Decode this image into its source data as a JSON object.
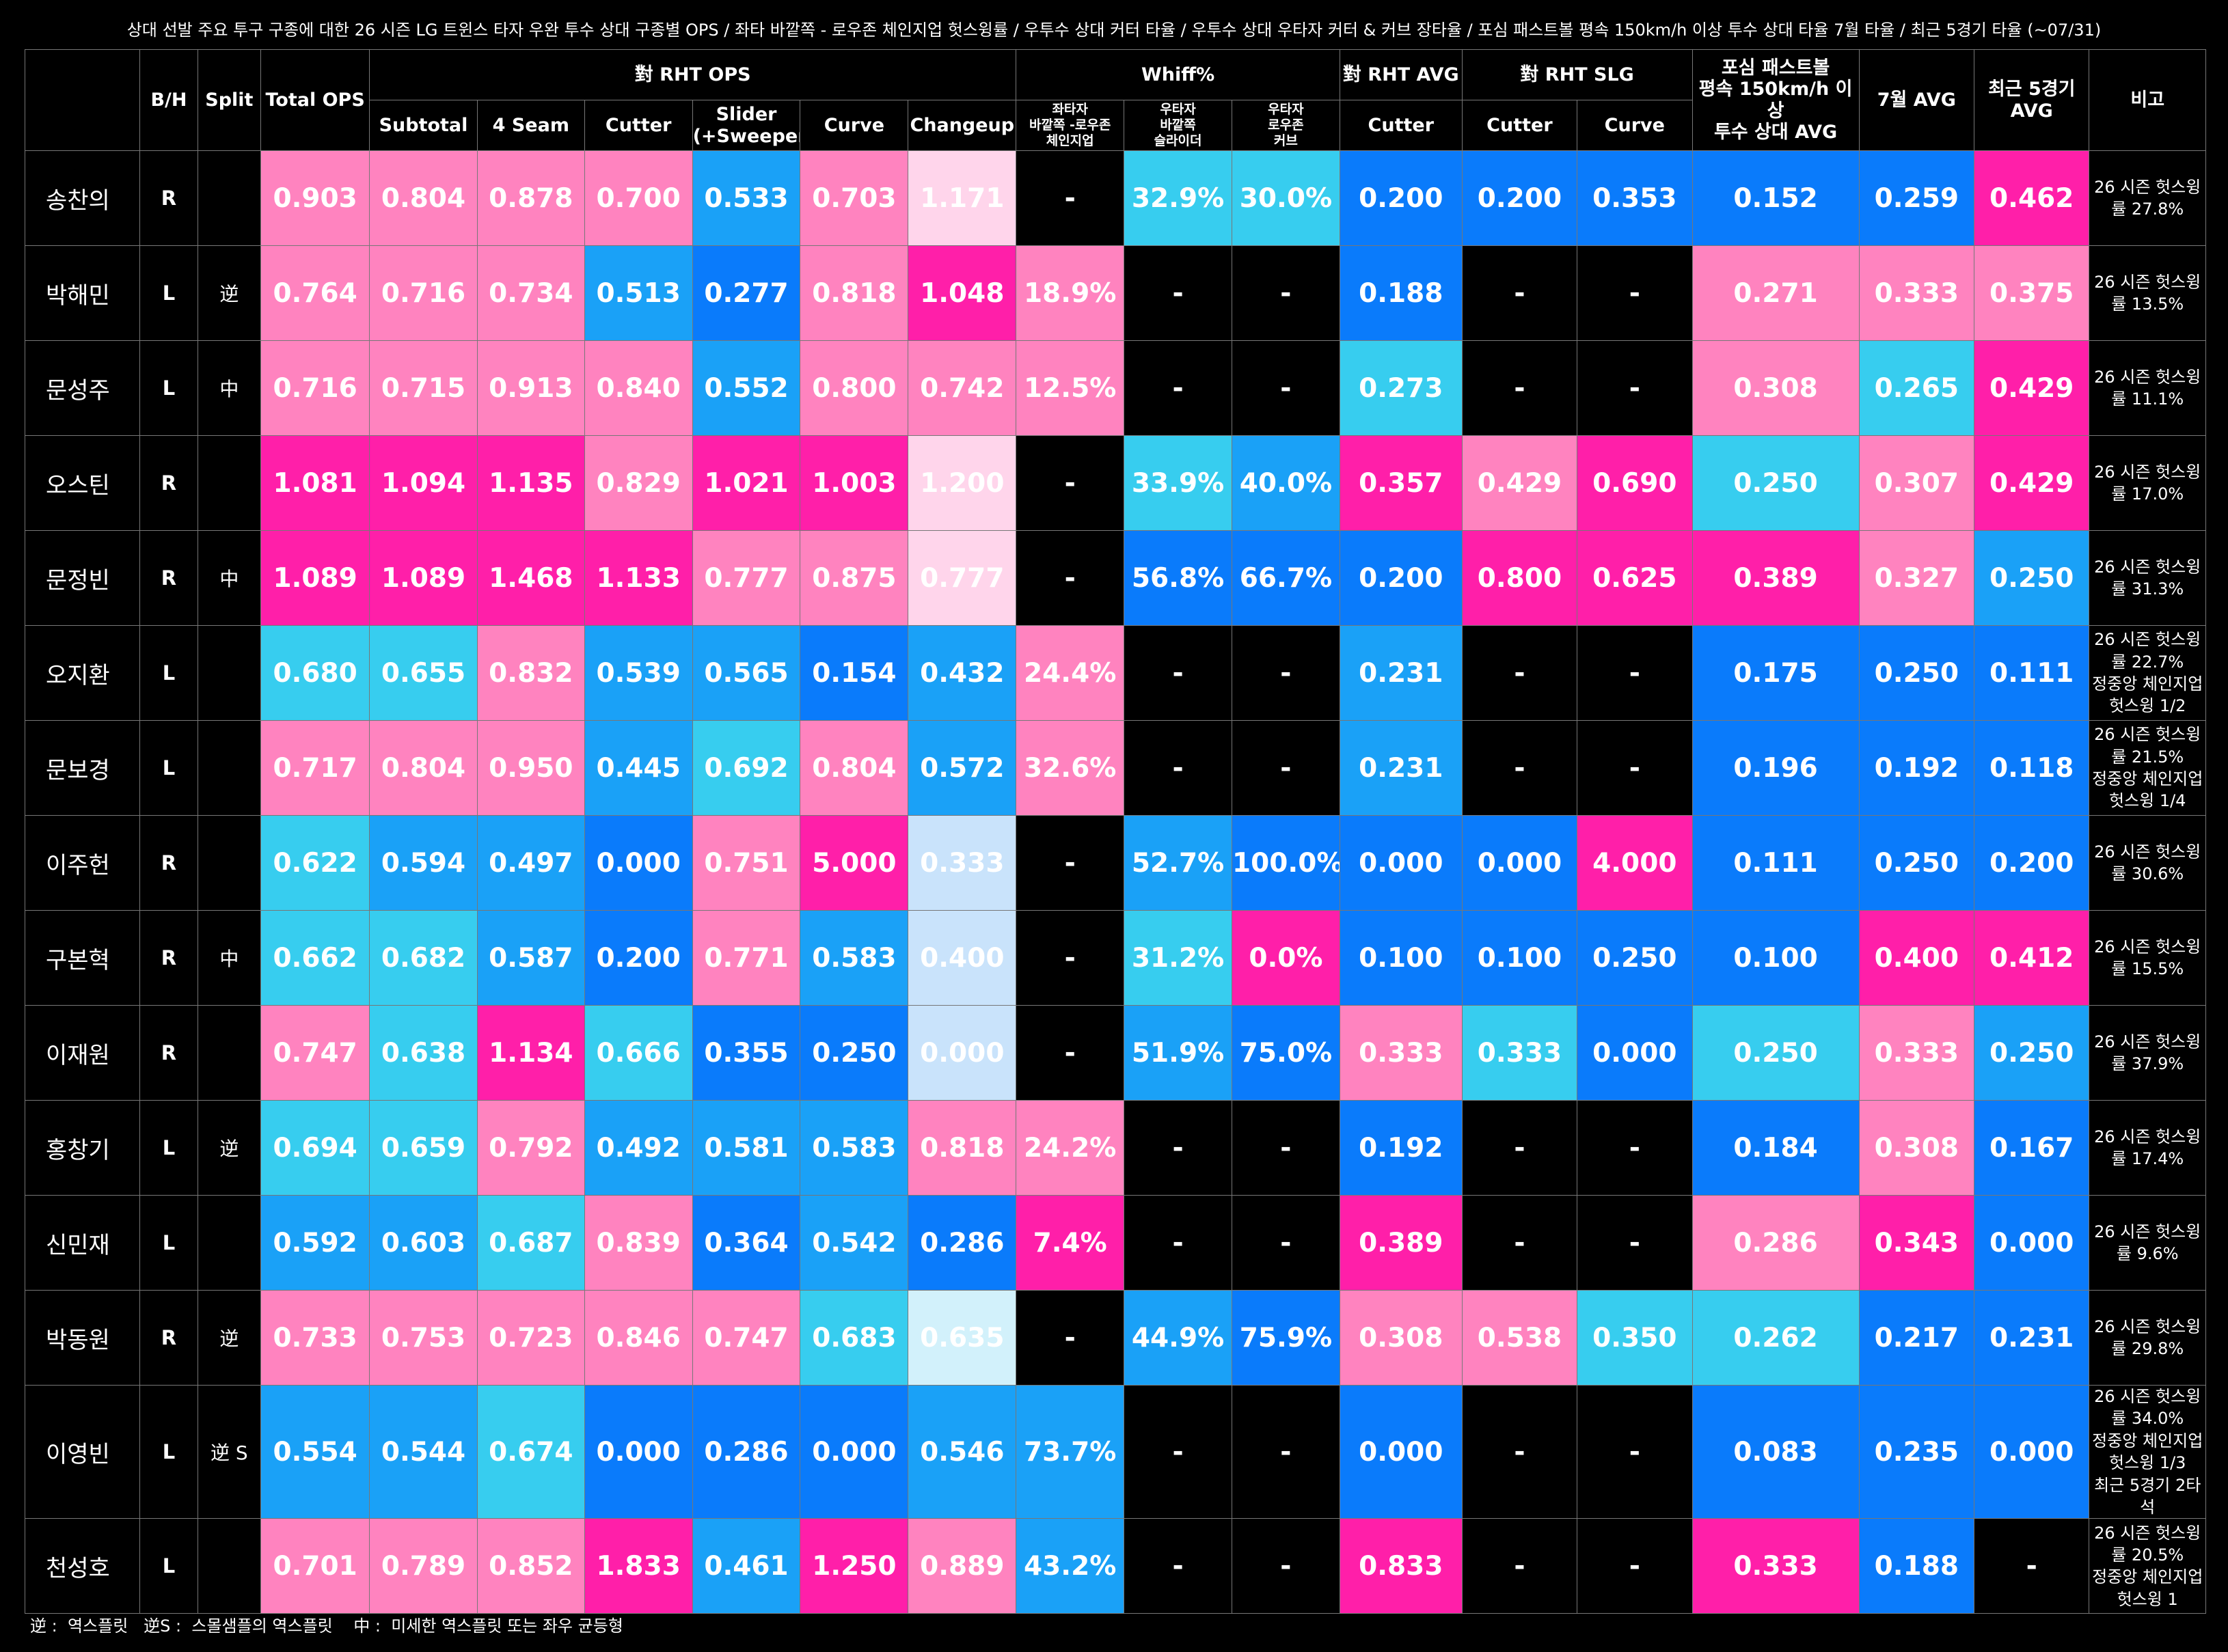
{
  "title": "상대 선발 주요 투구 구종에 대한 26 시즌 LG 트윈스 타자 우완 투수 상대 구종별 OPS / 좌타 바깥쪽 - 로우존 체인지업 헛스윙률 /  우투수 상대 커터 타율 / 우투수 상대 우타자 커터 & 커브 장타율 / 포심 패스트볼 평속 150km/h 이상 투수 상대 타율 7월 타율 / 최근 5경기 타율 (~07/31)",
  "headers": {
    "bh": "B/H",
    "split": "Split",
    "total_ops": "Total OPS",
    "group_ops": "對 RHT OPS",
    "group_whiff": "Whiff%",
    "group_avg": "對 RHT AVG",
    "group_slg": "對 RHT SLG",
    "fast_avg": "포심 패스트볼\n평속 150km/h 이상\n투수 상대 AVG",
    "july_avg": "7월 AVG",
    "recent_avg": "최근 5경기\nAVG",
    "note": "비고",
    "subtotal": "Subtotal",
    "fourseam": "4 Seam",
    "cutter": "Cutter",
    "slider": "Slider\n(+Sweeper)",
    "curve": "Curve",
    "changeup": "Changeup",
    "whiff_l_ch": "좌타자\n바깥쪽 -로우존\n체인지업",
    "whiff_r_sl": "우타자\n바깥쪽\n슬라이더",
    "whiff_r_cv": "우타자\n로우존\n커브",
    "avg_cutter": "Cutter",
    "slg_cutter": "Cutter",
    "slg_curve": "Curve"
  },
  "palette": {
    "black": "#000000",
    "hot_pink": "#FF1FA9",
    "pink": "#FF83BF",
    "light_pink": "#FFD5EB",
    "cyan": "#37CDEF",
    "blue": "#1AA1F7",
    "royal_blue": "#0A7BFB",
    "pale_blue": "#C9E3FB",
    "pale_cyan": "#D2F1FB"
  },
  "rows": [
    {
      "name": "송찬의",
      "bh": "R",
      "split": "",
      "note": "26 시즌 헛스윙률 27.8%",
      "cells": [
        [
          "0.903",
          "pink"
        ],
        [
          "0.804",
          "pink"
        ],
        [
          "0.878",
          "pink"
        ],
        [
          "0.700",
          "pink"
        ],
        [
          "0.533",
          "blue"
        ],
        [
          "0.703",
          "pink"
        ],
        [
          "1.171",
          "light_pink"
        ],
        [
          "-",
          "black"
        ],
        [
          "32.9%",
          "cyan"
        ],
        [
          "30.0%",
          "cyan"
        ],
        [
          "0.200",
          "royal_blue"
        ],
        [
          "0.200",
          "royal_blue"
        ],
        [
          "0.353",
          "royal_blue"
        ],
        [
          "0.152",
          "royal_blue"
        ],
        [
          "0.259",
          "royal_blue"
        ],
        [
          "0.462",
          "hot_pink"
        ]
      ]
    },
    {
      "name": "박해민",
      "bh": "L",
      "split": "逆",
      "note": "26 시즌 헛스윙률 13.5%",
      "cells": [
        [
          "0.764",
          "pink"
        ],
        [
          "0.716",
          "pink"
        ],
        [
          "0.734",
          "pink"
        ],
        [
          "0.513",
          "blue"
        ],
        [
          "0.277",
          "royal_blue"
        ],
        [
          "0.818",
          "pink"
        ],
        [
          "1.048",
          "hot_pink"
        ],
        [
          "18.9%",
          "pink"
        ],
        [
          "-",
          "black"
        ],
        [
          "-",
          "black"
        ],
        [
          "0.188",
          "royal_blue"
        ],
        [
          "-",
          "black"
        ],
        [
          "-",
          "black"
        ],
        [
          "0.271",
          "pink"
        ],
        [
          "0.333",
          "pink"
        ],
        [
          "0.375",
          "pink"
        ]
      ]
    },
    {
      "name": "문성주",
      "bh": "L",
      "split": "中",
      "note": "26 시즌 헛스윙률 11.1%",
      "cells": [
        [
          "0.716",
          "pink"
        ],
        [
          "0.715",
          "pink"
        ],
        [
          "0.913",
          "pink"
        ],
        [
          "0.840",
          "pink"
        ],
        [
          "0.552",
          "blue"
        ],
        [
          "0.800",
          "pink"
        ],
        [
          "0.742",
          "pink"
        ],
        [
          "12.5%",
          "pink"
        ],
        [
          "-",
          "black"
        ],
        [
          "-",
          "black"
        ],
        [
          "0.273",
          "cyan"
        ],
        [
          "-",
          "black"
        ],
        [
          "-",
          "black"
        ],
        [
          "0.308",
          "pink"
        ],
        [
          "0.265",
          "cyan"
        ],
        [
          "0.429",
          "hot_pink"
        ]
      ]
    },
    {
      "name": "오스틴",
      "bh": "R",
      "split": "",
      "note": "26 시즌 헛스윙률 17.0%",
      "cells": [
        [
          "1.081",
          "hot_pink"
        ],
        [
          "1.094",
          "hot_pink"
        ],
        [
          "1.135",
          "hot_pink"
        ],
        [
          "0.829",
          "pink"
        ],
        [
          "1.021",
          "hot_pink"
        ],
        [
          "1.003",
          "hot_pink"
        ],
        [
          "1.200",
          "light_pink"
        ],
        [
          "-",
          "black"
        ],
        [
          "33.9%",
          "cyan"
        ],
        [
          "40.0%",
          "blue"
        ],
        [
          "0.357",
          "hot_pink"
        ],
        [
          "0.429",
          "pink"
        ],
        [
          "0.690",
          "hot_pink"
        ],
        [
          "0.250",
          "cyan"
        ],
        [
          "0.307",
          "pink"
        ],
        [
          "0.429",
          "hot_pink"
        ]
      ]
    },
    {
      "name": "문정빈",
      "bh": "R",
      "split": "中",
      "note": "26 시즌 헛스윙률 31.3%",
      "cells": [
        [
          "1.089",
          "hot_pink"
        ],
        [
          "1.089",
          "hot_pink"
        ],
        [
          "1.468",
          "hot_pink"
        ],
        [
          "1.133",
          "hot_pink"
        ],
        [
          "0.777",
          "pink"
        ],
        [
          "0.875",
          "pink"
        ],
        [
          "0.777",
          "light_pink"
        ],
        [
          "-",
          "black"
        ],
        [
          "56.8%",
          "royal_blue"
        ],
        [
          "66.7%",
          "royal_blue"
        ],
        [
          "0.200",
          "royal_blue"
        ],
        [
          "0.800",
          "hot_pink"
        ],
        [
          "0.625",
          "hot_pink"
        ],
        [
          "0.389",
          "hot_pink"
        ],
        [
          "0.327",
          "pink"
        ],
        [
          "0.250",
          "blue"
        ]
      ]
    },
    {
      "name": "오지환",
      "bh": "L",
      "split": "",
      "note": "26 시즌 헛스윙률 22.7%\n정중앙 체인지업 헛스윙 1/2",
      "cells": [
        [
          "0.680",
          "cyan"
        ],
        [
          "0.655",
          "cyan"
        ],
        [
          "0.832",
          "pink"
        ],
        [
          "0.539",
          "blue"
        ],
        [
          "0.565",
          "blue"
        ],
        [
          "0.154",
          "royal_blue"
        ],
        [
          "0.432",
          "blue"
        ],
        [
          "24.4%",
          "pink"
        ],
        [
          "-",
          "black"
        ],
        [
          "-",
          "black"
        ],
        [
          "0.231",
          "blue"
        ],
        [
          "-",
          "black"
        ],
        [
          "-",
          "black"
        ],
        [
          "0.175",
          "royal_blue"
        ],
        [
          "0.250",
          "royal_blue"
        ],
        [
          "0.111",
          "royal_blue"
        ]
      ]
    },
    {
      "name": "문보경",
      "bh": "L",
      "split": "",
      "note": "26 시즌 헛스윙률 21.5%\n정중앙 체인지업 헛스윙 1/4",
      "cells": [
        [
          "0.717",
          "pink"
        ],
        [
          "0.804",
          "pink"
        ],
        [
          "0.950",
          "pink"
        ],
        [
          "0.445",
          "blue"
        ],
        [
          "0.692",
          "cyan"
        ],
        [
          "0.804",
          "pink"
        ],
        [
          "0.572",
          "blue"
        ],
        [
          "32.6%",
          "pink"
        ],
        [
          "-",
          "black"
        ],
        [
          "-",
          "black"
        ],
        [
          "0.231",
          "blue"
        ],
        [
          "-",
          "black"
        ],
        [
          "-",
          "black"
        ],
        [
          "0.196",
          "royal_blue"
        ],
        [
          "0.192",
          "royal_blue"
        ],
        [
          "0.118",
          "royal_blue"
        ]
      ]
    },
    {
      "name": "이주헌",
      "bh": "R",
      "split": "",
      "note": "26 시즌 헛스윙률 30.6%",
      "cells": [
        [
          "0.622",
          "cyan"
        ],
        [
          "0.594",
          "blue"
        ],
        [
          "0.497",
          "blue"
        ],
        [
          "0.000",
          "royal_blue"
        ],
        [
          "0.751",
          "pink"
        ],
        [
          "5.000",
          "hot_pink"
        ],
        [
          "0.333",
          "pale_blue"
        ],
        [
          "-",
          "black"
        ],
        [
          "52.7%",
          "blue"
        ],
        [
          "100.0%",
          "royal_blue"
        ],
        [
          "0.000",
          "royal_blue"
        ],
        [
          "0.000",
          "royal_blue"
        ],
        [
          "4.000",
          "hot_pink"
        ],
        [
          "0.111",
          "royal_blue"
        ],
        [
          "0.250",
          "royal_blue"
        ],
        [
          "0.200",
          "royal_blue"
        ]
      ]
    },
    {
      "name": "구본혁",
      "bh": "R",
      "split": "中",
      "note": "26 시즌 헛스윙률 15.5%",
      "cells": [
        [
          "0.662",
          "cyan"
        ],
        [
          "0.682",
          "cyan"
        ],
        [
          "0.587",
          "blue"
        ],
        [
          "0.200",
          "royal_blue"
        ],
        [
          "0.771",
          "pink"
        ],
        [
          "0.583",
          "blue"
        ],
        [
          "0.400",
          "pale_blue"
        ],
        [
          "-",
          "black"
        ],
        [
          "31.2%",
          "cyan"
        ],
        [
          "0.0%",
          "hot_pink"
        ],
        [
          "0.100",
          "royal_blue"
        ],
        [
          "0.100",
          "royal_blue"
        ],
        [
          "0.250",
          "royal_blue"
        ],
        [
          "0.100",
          "royal_blue"
        ],
        [
          "0.400",
          "hot_pink"
        ],
        [
          "0.412",
          "hot_pink"
        ]
      ]
    },
    {
      "name": "이재원",
      "bh": "R",
      "split": "",
      "note": "26 시즌 헛스윙률 37.9%",
      "cells": [
        [
          "0.747",
          "pink"
        ],
        [
          "0.638",
          "cyan"
        ],
        [
          "1.134",
          "hot_pink"
        ],
        [
          "0.666",
          "cyan"
        ],
        [
          "0.355",
          "royal_blue"
        ],
        [
          "0.250",
          "royal_blue"
        ],
        [
          "0.000",
          "pale_blue"
        ],
        [
          "-",
          "black"
        ],
        [
          "51.9%",
          "blue"
        ],
        [
          "75.0%",
          "royal_blue"
        ],
        [
          "0.333",
          "pink"
        ],
        [
          "0.333",
          "cyan"
        ],
        [
          "0.000",
          "royal_blue"
        ],
        [
          "0.250",
          "cyan"
        ],
        [
          "0.333",
          "pink"
        ],
        [
          "0.250",
          "blue"
        ]
      ]
    },
    {
      "name": "홍창기",
      "bh": "L",
      "split": "逆",
      "note": "26 시즌 헛스윙률 17.4%",
      "cells": [
        [
          "0.694",
          "cyan"
        ],
        [
          "0.659",
          "cyan"
        ],
        [
          "0.792",
          "pink"
        ],
        [
          "0.492",
          "blue"
        ],
        [
          "0.581",
          "blue"
        ],
        [
          "0.583",
          "blue"
        ],
        [
          "0.818",
          "pink"
        ],
        [
          "24.2%",
          "pink"
        ],
        [
          "-",
          "black"
        ],
        [
          "-",
          "black"
        ],
        [
          "0.192",
          "royal_blue"
        ],
        [
          "-",
          "black"
        ],
        [
          "-",
          "black"
        ],
        [
          "0.184",
          "royal_blue"
        ],
        [
          "0.308",
          "pink"
        ],
        [
          "0.167",
          "royal_blue"
        ]
      ]
    },
    {
      "name": "신민재",
      "bh": "L",
      "split": "",
      "note": "26 시즌 헛스윙률 9.6%",
      "cells": [
        [
          "0.592",
          "blue"
        ],
        [
          "0.603",
          "blue"
        ],
        [
          "0.687",
          "cyan"
        ],
        [
          "0.839",
          "pink"
        ],
        [
          "0.364",
          "royal_blue"
        ],
        [
          "0.542",
          "blue"
        ],
        [
          "0.286",
          "royal_blue"
        ],
        [
          "7.4%",
          "hot_pink"
        ],
        [
          "-",
          "black"
        ],
        [
          "-",
          "black"
        ],
        [
          "0.389",
          "hot_pink"
        ],
        [
          "-",
          "black"
        ],
        [
          "-",
          "black"
        ],
        [
          "0.286",
          "pink"
        ],
        [
          "0.343",
          "hot_pink"
        ],
        [
          "0.000",
          "royal_blue"
        ]
      ]
    },
    {
      "name": "박동원",
      "bh": "R",
      "split": "逆",
      "note": "26 시즌 헛스윙률 29.8%",
      "cells": [
        [
          "0.733",
          "pink"
        ],
        [
          "0.753",
          "pink"
        ],
        [
          "0.723",
          "pink"
        ],
        [
          "0.846",
          "pink"
        ],
        [
          "0.747",
          "pink"
        ],
        [
          "0.683",
          "cyan"
        ],
        [
          "0.635",
          "pale_cyan"
        ],
        [
          "-",
          "black"
        ],
        [
          "44.9%",
          "blue"
        ],
        [
          "75.9%",
          "royal_blue"
        ],
        [
          "0.308",
          "pink"
        ],
        [
          "0.538",
          "pink"
        ],
        [
          "0.350",
          "cyan"
        ],
        [
          "0.262",
          "cyan"
        ],
        [
          "0.217",
          "royal_blue"
        ],
        [
          "0.231",
          "royal_blue"
        ]
      ]
    },
    {
      "name": "이영빈",
      "bh": "L",
      "split": "逆 S",
      "note": "26 시즌 헛스윙률 34.0%\n정중앙 체인지업 헛스윙 1/3\n최근 5경기 2타석",
      "cells": [
        [
          "0.554",
          "blue"
        ],
        [
          "0.544",
          "blue"
        ],
        [
          "0.674",
          "cyan"
        ],
        [
          "0.000",
          "royal_blue"
        ],
        [
          "0.286",
          "royal_blue"
        ],
        [
          "0.000",
          "royal_blue"
        ],
        [
          "0.546",
          "blue"
        ],
        [
          "73.7%",
          "blue"
        ],
        [
          "-",
          "black"
        ],
        [
          "-",
          "black"
        ],
        [
          "0.000",
          "royal_blue"
        ],
        [
          "-",
          "black"
        ],
        [
          "-",
          "black"
        ],
        [
          "0.083",
          "royal_blue"
        ],
        [
          "0.235",
          "royal_blue"
        ],
        [
          "0.000",
          "royal_blue"
        ]
      ]
    },
    {
      "name": "천성호",
      "bh": "L",
      "split": "",
      "note": "26 시즌 헛스윙률 20.5%\n정중앙 체인지업 헛스윙 1",
      "cells": [
        [
          "0.701",
          "pink"
        ],
        [
          "0.789",
          "pink"
        ],
        [
          "0.852",
          "pink"
        ],
        [
          "1.833",
          "hot_pink"
        ],
        [
          "0.461",
          "blue"
        ],
        [
          "1.250",
          "hot_pink"
        ],
        [
          "0.889",
          "pink"
        ],
        [
          "43.2%",
          "blue"
        ],
        [
          "-",
          "black"
        ],
        [
          "-",
          "black"
        ],
        [
          "0.833",
          "hot_pink"
        ],
        [
          "-",
          "black"
        ],
        [
          "-",
          "black"
        ],
        [
          "0.333",
          "hot_pink"
        ],
        [
          "0.188",
          "royal_blue"
        ],
        [
          "-",
          "black"
        ]
      ]
    }
  ],
  "footnote": "逆 :  역스플릿   逆S :  스몰샘플의 역스플릿    中 :  미세한 역스플릿 또는 좌우 균등형",
  "chart_data": {
    "type": "table",
    "title": "상대 선발 주요 투구 구종에 대한 26 시즌 LG 트윈스 타자 우완 투수 상대 구종별 OPS / 좌타 바깥쪽 - 로우존 체인지업 헛스윙률 /  우투수 상대 커터 타율 / 우투수 상대 우타자 커터 & 커브 장타율 / 포심 패스트볼 평속 150km/h 이상 투수 상대 타율 7월 타율 / 최근 5경기 타율 (~07/31)",
    "columns": [
      "B/H",
      "Split",
      "Total OPS",
      "對 RHT OPS Subtotal",
      "對 RHT OPS 4 Seam",
      "對 RHT OPS Cutter",
      "對 RHT OPS Slider (+Sweeper)",
      "對 RHT OPS Curve",
      "對 RHT OPS Changeup",
      "Whiff% 좌타자 바깥쪽 -로우존 체인지업",
      "Whiff% 우타자 바깥쪽 슬라이더",
      "Whiff% 우타자 로우존 커브",
      "對 RHT AVG Cutter",
      "對 RHT SLG Cutter",
      "對 RHT SLG Curve",
      "포심 패스트볼 평속 150km/h 이상 투수 상대 AVG",
      "7월 AVG",
      "최근 5경기 AVG",
      "비고"
    ],
    "rows": [
      "송찬의",
      "박해민",
      "문성주",
      "오스틴",
      "문정빈",
      "오지환",
      "문보경",
      "이주헌",
      "구본혁",
      "이재원",
      "홍창기",
      "신민재",
      "박동원",
      "이영빈",
      "천성호"
    ]
  }
}
